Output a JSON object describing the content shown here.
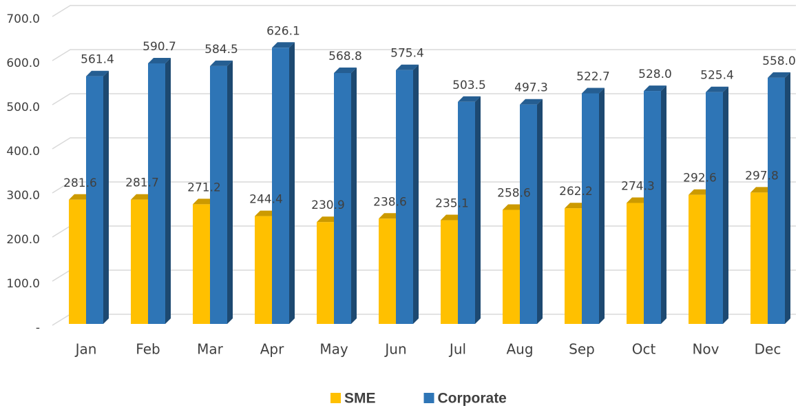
{
  "chart_data": {
    "type": "bar3d",
    "categories": [
      "Jan",
      "Feb",
      "Mar",
      "Apr",
      "May",
      "Jun",
      "Jul",
      "Aug",
      "Sep",
      "Oct",
      "Nov",
      "Dec"
    ],
    "series": [
      {
        "name": "SME",
        "color": "#ffc000",
        "values": [
          281.6,
          281.7,
          271.2,
          244.4,
          230.9,
          238.6,
          235.1,
          258.6,
          262.2,
          274.3,
          292.6,
          297.8
        ],
        "value_labels": [
          "281.6",
          "281.7",
          "271.2",
          "244.4",
          "230.9",
          "238.6",
          "235.1",
          "258.6",
          "262.2",
          "274.3",
          "292.6",
          "297.8"
        ]
      },
      {
        "name": "Corporate",
        "color": "#2e75b6",
        "values": [
          561.4,
          590.7,
          584.5,
          626.1,
          568.8,
          575.4,
          503.5,
          497.3,
          522.7,
          528.0,
          525.4,
          558.0
        ],
        "value_labels": [
          "561.4",
          "590.7",
          "584.5",
          "626.1",
          "568.8",
          "575.4",
          "503.5",
          "497.3",
          "522.7",
          "528.0",
          "525.4",
          "558.0"
        ]
      }
    ],
    "ylim": [
      0,
      700
    ],
    "yticks": [
      {
        "value": 0,
        "label": "-"
      },
      {
        "value": 100,
        "label": "100.0"
      },
      {
        "value": 200,
        "label": "200.0"
      },
      {
        "value": 300,
        "label": "300.0"
      },
      {
        "value": 400,
        "label": "400.0"
      },
      {
        "value": 500,
        "label": "500.0"
      },
      {
        "value": 600,
        "label": "600.0"
      },
      {
        "value": 700,
        "label": "700.0"
      }
    ],
    "grid": true
  }
}
